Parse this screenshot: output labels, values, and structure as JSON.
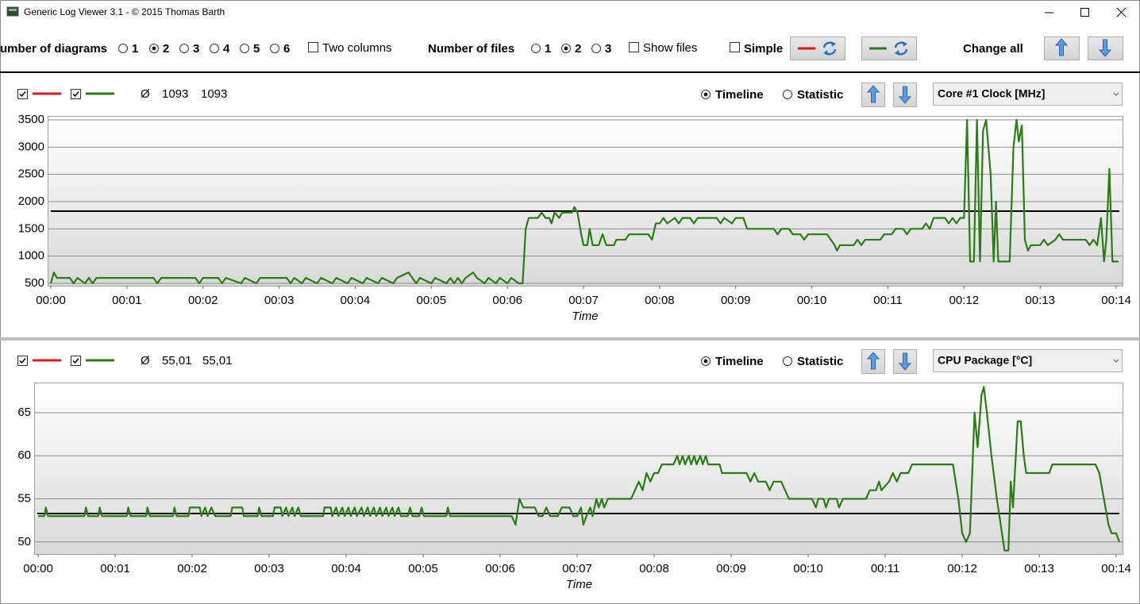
{
  "window": {
    "title": "Generic Log Viewer 3.1 - © 2015 Thomas Barth"
  },
  "toolbar": {
    "diagrams_label": "umber of diagrams",
    "diagram_options": [
      "1",
      "2",
      "3",
      "4",
      "5",
      "6"
    ],
    "diagrams_selected": 1,
    "two_columns": "Two columns",
    "files_label": "Number of files",
    "file_options": [
      "1",
      "2",
      "3"
    ],
    "files_selected": 1,
    "show_files": "Show files",
    "simple": "Simple",
    "change_all": "Change all"
  },
  "chart_data": [
    {
      "type": "line",
      "selector": "Core #1 Clock [MHz]",
      "average_symbol": "Ø",
      "averages": [
        1093,
        1093
      ],
      "legend_colors": [
        "#e0161c",
        "#2a7d14"
      ],
      "modes": [
        "Timeline",
        "Statistic"
      ],
      "mode_selected": 0,
      "xlabel": "Time",
      "xlim": [
        -0.042,
        14.083
      ],
      "ylim": [
        456,
        3573
      ],
      "yticks": [
        500,
        1000,
        1500,
        2000,
        2500,
        3000,
        3500
      ],
      "grid": true,
      "xticks": [
        {
          "value": 0,
          "label": "00:00"
        },
        {
          "value": 1,
          "label": "00:01"
        },
        {
          "value": 2,
          "label": "00:02"
        },
        {
          "value": 3,
          "label": "00:03"
        },
        {
          "value": 4,
          "label": "00:04"
        },
        {
          "value": 5,
          "label": "00:05"
        },
        {
          "value": 6,
          "label": "00:06"
        },
        {
          "value": 7,
          "label": "00:07"
        },
        {
          "value": 8,
          "label": "00:08"
        },
        {
          "value": 9,
          "label": "00:09"
        },
        {
          "value": 10,
          "label": "00:10"
        },
        {
          "value": 11,
          "label": "00:11"
        },
        {
          "value": 12,
          "label": "00:12"
        },
        {
          "value": 13,
          "label": "00:13"
        },
        {
          "value": 14,
          "label": "00:14"
        }
      ],
      "reference_line": 1825,
      "x": [
        0,
        0.04,
        0.08,
        0.25,
        0.3,
        0.35,
        0.45,
        0.5,
        0.55,
        0.6,
        1.35,
        1.4,
        1.45,
        1.9,
        1.95,
        2,
        2.2,
        2.25,
        2.3,
        2.5,
        2.55,
        2.7,
        2.75,
        3.1,
        3.15,
        3.2,
        3.3,
        3.35,
        3.5,
        3.55,
        3.7,
        3.75,
        3.9,
        3.95,
        4.1,
        4.15,
        4.3,
        4.35,
        4.5,
        4.55,
        4.7,
        4.75,
        4.8,
        4.85,
        5,
        5.05,
        5.2,
        5.25,
        5.3,
        5.35,
        5.4,
        5.45,
        5.55,
        5.6,
        5.7,
        5.75,
        5.85,
        5.9,
        6,
        6.05,
        6.15,
        6.2,
        6.24,
        6.28,
        6.4,
        6.45,
        6.5,
        6.55,
        6.58,
        6.62,
        6.68,
        6.72,
        6.85,
        6.88,
        6.92,
        6.97,
        7,
        7.05,
        7.08,
        7.12,
        7.2,
        7.25,
        7.3,
        7.4,
        7.43,
        7.55,
        7.6,
        7.85,
        7.9,
        7.95,
        8,
        8.05,
        8.1,
        8.2,
        8.25,
        8.3,
        8.4,
        8.45,
        8.5,
        8.75,
        8.8,
        8.85,
        8.95,
        9,
        9.1,
        9.15,
        9.5,
        9.55,
        9.6,
        9.7,
        9.75,
        9.85,
        9.9,
        9.95,
        10.2,
        10.25,
        10.3,
        10.33,
        10.37,
        10.55,
        10.6,
        10.65,
        10.7,
        10.9,
        10.95,
        11.05,
        11.1,
        11.2,
        11.25,
        11.3,
        11.45,
        11.5,
        11.55,
        11.6,
        11.75,
        11.8,
        11.85,
        11.9,
        11.95,
        12,
        12.04,
        12.08,
        12.13,
        12.17,
        12.21,
        12.25,
        12.29,
        12.35,
        12.39,
        12.42,
        12.45,
        12.6,
        12.65,
        12.69,
        12.72,
        12.76,
        12.8,
        12.84,
        12.88,
        13,
        13.05,
        13.1,
        13.2,
        13.25,
        13.3,
        13.6,
        13.65,
        13.7,
        13.75,
        13.8,
        13.84,
        13.87,
        13.91,
        13.95,
        14.03
      ],
      "series": [
        {
          "color": "#2a7d14",
          "values": [
            500,
            700,
            600,
            600,
            500,
            600,
            500,
            600,
            500,
            600,
            600,
            500,
            600,
            600,
            500,
            600,
            600,
            500,
            600,
            500,
            600,
            500,
            600,
            600,
            500,
            600,
            500,
            600,
            500,
            600,
            500,
            600,
            500,
            600,
            500,
            600,
            500,
            600,
            500,
            600,
            700,
            600,
            500,
            600,
            500,
            600,
            500,
            600,
            500,
            600,
            500,
            600,
            700,
            600,
            500,
            600,
            500,
            600,
            500,
            600,
            500,
            500,
            1500,
            1700,
            1700,
            1800,
            1700,
            1700,
            1600,
            1800,
            1700,
            1800,
            1800,
            1900,
            1800,
            1400,
            1200,
            1200,
            1500,
            1200,
            1200,
            1400,
            1200,
            1200,
            1300,
            1300,
            1400,
            1400,
            1300,
            1600,
            1600,
            1700,
            1600,
            1700,
            1600,
            1700,
            1700,
            1600,
            1700,
            1700,
            1600,
            1700,
            1600,
            1700,
            1700,
            1500,
            1500,
            1400,
            1500,
            1500,
            1400,
            1400,
            1300,
            1400,
            1400,
            1300,
            1200,
            1100,
            1200,
            1200,
            1300,
            1200,
            1300,
            1300,
            1400,
            1400,
            1500,
            1500,
            1400,
            1500,
            1500,
            1600,
            1500,
            1700,
            1700,
            1600,
            1700,
            1600,
            1700,
            1700,
            3500,
            900,
            900,
            3500,
            900,
            3300,
            3500,
            2500,
            900,
            2000,
            900,
            900,
            3000,
            3500,
            3100,
            3400,
            1300,
            1100,
            1200,
            1200,
            1300,
            1200,
            1300,
            1400,
            1300,
            1300,
            1200,
            1300,
            1200,
            1700,
            900,
            1300,
            2600,
            900,
            900
          ]
        }
      ]
    },
    {
      "type": "line",
      "selector": "CPU Package [°C]",
      "average_symbol": "Ø",
      "averages": [
        {
          "value": 55.01,
          "label": "55,01"
        },
        {
          "value": 55.01,
          "label": "55,01"
        }
      ],
      "legend_colors": [
        "#e0161c",
        "#2a7d14"
      ],
      "modes": [
        "Timeline",
        "Statistic"
      ],
      "mode_selected": 0,
      "xlabel": "Time",
      "xlim": [
        -0.052,
        14.082
      ],
      "ylim": [
        48.6,
        68.5
      ],
      "yticks": [
        50,
        55,
        60,
        65
      ],
      "grid": true,
      "xticks": [
        {
          "value": 0,
          "label": "00:00"
        },
        {
          "value": 1,
          "label": "00:01"
        },
        {
          "value": 2,
          "label": "00:02"
        },
        {
          "value": 3,
          "label": "00:03"
        },
        {
          "value": 4,
          "label": "00:04"
        },
        {
          "value": 5,
          "label": "00:05"
        },
        {
          "value": 6,
          "label": "00:06"
        },
        {
          "value": 7,
          "label": "00:07"
        },
        {
          "value": 8,
          "label": "00:08"
        },
        {
          "value": 9,
          "label": "00:09"
        },
        {
          "value": 10,
          "label": "00:10"
        },
        {
          "value": 11,
          "label": "00:11"
        },
        {
          "value": 12,
          "label": "00:12"
        },
        {
          "value": 13,
          "label": "00:13"
        },
        {
          "value": 14,
          "label": "00:14"
        }
      ],
      "reference_line": 53.3,
      "x": [
        0,
        0.08,
        0.1,
        0.13,
        0.6,
        0.62,
        0.65,
        0.78,
        0.8,
        0.83,
        1.15,
        1.17,
        1.2,
        1.4,
        1.42,
        1.45,
        1.75,
        1.77,
        1.8,
        1.95,
        1.97,
        2.1,
        2.12,
        2.17,
        2.2,
        2.25,
        2.3,
        2.5,
        2.52,
        2.65,
        2.67,
        2.85,
        2.87,
        2.9,
        3.05,
        3.07,
        3.15,
        3.17,
        3.22,
        3.25,
        3.3,
        3.33,
        3.38,
        3.41,
        3.7,
        3.72,
        3.8,
        3.82,
        3.87,
        3.9,
        3.95,
        3.98,
        4.03,
        4.06,
        4.11,
        4.14,
        4.2,
        4.23,
        4.28,
        4.31,
        4.36,
        4.39,
        4.44,
        4.47,
        4.52,
        4.55,
        4.6,
        4.63,
        4.68,
        4.71,
        4.8,
        4.83,
        4.86,
        4.95,
        4.98,
        5.01,
        5.3,
        5.32,
        5.35,
        6.15,
        6.2,
        6.25,
        6.3,
        6.45,
        6.5,
        6.55,
        6.6,
        6.65,
        6.75,
        6.8,
        6.9,
        6.95,
        7,
        7.05,
        7.08,
        7.12,
        7.17,
        7.2,
        7.25,
        7.28,
        7.32,
        7.35,
        7.4,
        7.7,
        7.75,
        7.8,
        7.85,
        7.9,
        7.95,
        8,
        8.05,
        8.1,
        8.25,
        8.3,
        8.33,
        8.37,
        8.4,
        8.45,
        8.48,
        8.52,
        8.55,
        8.6,
        8.63,
        8.67,
        8.7,
        8.85,
        8.88,
        9.2,
        9.25,
        9.3,
        9.35,
        9.45,
        9.5,
        9.55,
        9.65,
        9.7,
        9.75,
        10.05,
        10.1,
        10.13,
        10.2,
        10.23,
        10.27,
        10.37,
        10.4,
        10.45,
        10.75,
        10.8,
        10.88,
        10.92,
        10.95,
        11.05,
        11.1,
        11.15,
        11.2,
        11.3,
        11.35,
        11.45,
        11.88,
        11.95,
        12,
        12.05,
        12.1,
        12.16,
        12.2,
        12.25,
        12.28,
        12.32,
        12.38,
        12.45,
        12.55,
        12.6,
        12.63,
        12.66,
        12.72,
        12.76,
        12.8,
        12.83,
        13.13,
        13.17,
        13.73,
        13.78,
        13.84,
        13.9,
        13.94,
        14,
        14.04
      ],
      "series": [
        {
          "color": "#2a7d14",
          "values": [
            53,
            53,
            54,
            53,
            53,
            54,
            53,
            53,
            54,
            53,
            53,
            54,
            53,
            53,
            54,
            53,
            53,
            54,
            53,
            53,
            54,
            54,
            53,
            54,
            53,
            54,
            53,
            53,
            54,
            54,
            53,
            53,
            54,
            53,
            53,
            54,
            54,
            53,
            54,
            53,
            54,
            53,
            54,
            53,
            53,
            54,
            54,
            53,
            54,
            53,
            54,
            53,
            54,
            53,
            54,
            53,
            54,
            53,
            54,
            53,
            54,
            53,
            54,
            53,
            54,
            53,
            54,
            53,
            54,
            53,
            53,
            54,
            53,
            53,
            54,
            53,
            53,
            54,
            53,
            53,
            52,
            55,
            54,
            54,
            53,
            53,
            54,
            53,
            53,
            54,
            54,
            53,
            53,
            54,
            52,
            53,
            54,
            53,
            55,
            54,
            55,
            54,
            55,
            55,
            56,
            57,
            56,
            58,
            57,
            58,
            58,
            59,
            59,
            60,
            59,
            60,
            59,
            60,
            59,
            60,
            59,
            60,
            59,
            60,
            59,
            59,
            58,
            58,
            57,
            58,
            57,
            57,
            56,
            57,
            57,
            56,
            55,
            55,
            54,
            55,
            55,
            54,
            55,
            55,
            54,
            55,
            55,
            56,
            56,
            57,
            56,
            57,
            58,
            57,
            58,
            58,
            59,
            59,
            59,
            55,
            51,
            50,
            51,
            65,
            61,
            67,
            68,
            65,
            60,
            55,
            49,
            49,
            57,
            54,
            64,
            64,
            60,
            58,
            58,
            59,
            59,
            58,
            55,
            52,
            51,
            51,
            50
          ]
        }
      ]
    }
  ]
}
